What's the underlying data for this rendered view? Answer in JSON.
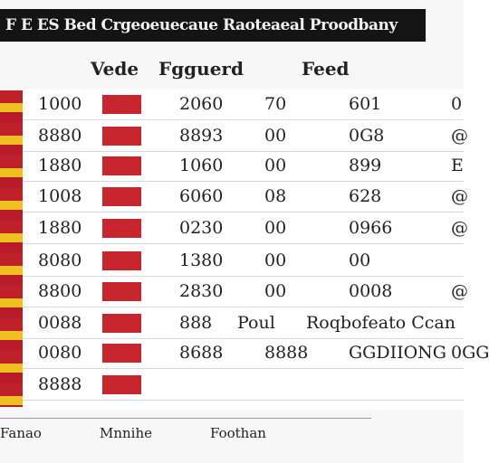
{
  "header": {
    "title": "F E ES Bed Crgeoeuecaue Raoteaeal Proodbany",
    "columns": [
      "Vede",
      "Fgguerd",
      "Feed"
    ]
  },
  "table": {
    "rows": [
      [
        "1000",
        "2060",
        "70",
        "601",
        "0"
      ],
      [
        "8880",
        "8893",
        "00",
        "0G8",
        "@"
      ],
      [
        "1880",
        "1060",
        "00",
        "899",
        "E"
      ],
      [
        "1008",
        "6060",
        "08",
        "628",
        "@"
      ],
      [
        "1880",
        "0230",
        "00",
        "0966",
        "@"
      ],
      [
        "8080",
        "1380",
        "00",
        "00"
      ],
      [
        "8800",
        "2830",
        "00",
        "0008",
        "@"
      ],
      [
        "0088",
        "888",
        "Poul",
        "Roqbofeato Ccan"
      ],
      [
        "0080",
        "8688",
        "8888",
        "GGDIIONG",
        "0GG"
      ],
      [
        "8888"
      ]
    ]
  },
  "footer": {
    "items": [
      "Fanao",
      "Mnnihe",
      "Foothan"
    ]
  }
}
